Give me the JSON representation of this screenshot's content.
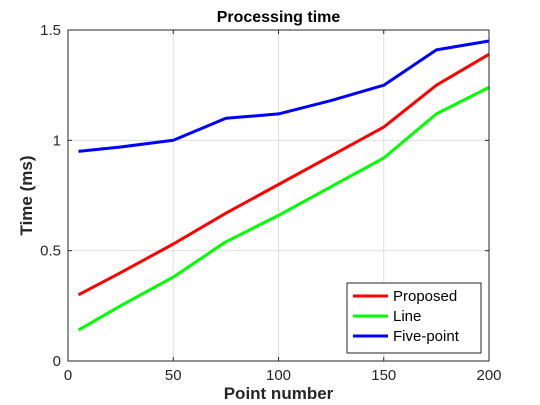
{
  "chart_data": {
    "type": "line",
    "title": "Processing time",
    "xlabel": "Point number",
    "ylabel": "Time (ms)",
    "xlim": [
      0,
      200
    ],
    "ylim": [
      0,
      1.5
    ],
    "xticks": [
      0,
      50,
      100,
      150,
      200
    ],
    "xtick_labels": [
      "0",
      "50",
      "100",
      "150",
      "200"
    ],
    "yticks": [
      0,
      0.5,
      1,
      1.5
    ],
    "ytick_labels": [
      "0",
      "0.5",
      "1",
      "1.5"
    ],
    "grid": true,
    "legend_position": "bottom-right",
    "series": [
      {
        "name": "Proposed",
        "color": "#ff0000",
        "x": [
          5,
          25,
          50,
          75,
          100,
          125,
          150,
          175,
          200
        ],
        "y": [
          0.3,
          0.4,
          0.53,
          0.67,
          0.8,
          0.93,
          1.06,
          1.25,
          1.39
        ]
      },
      {
        "name": "Line",
        "color": "#00ff00",
        "x": [
          5,
          25,
          50,
          75,
          100,
          125,
          150,
          175,
          200
        ],
        "y": [
          0.14,
          0.25,
          0.38,
          0.54,
          0.66,
          0.79,
          0.92,
          1.12,
          1.24
        ]
      },
      {
        "name": "Five-point",
        "color": "#0000ff",
        "x": [
          5,
          25,
          50,
          75,
          100,
          125,
          150,
          175,
          200
        ],
        "y": [
          0.95,
          0.97,
          1.0,
          1.1,
          1.12,
          1.18,
          1.25,
          1.41,
          1.45
        ]
      }
    ]
  }
}
